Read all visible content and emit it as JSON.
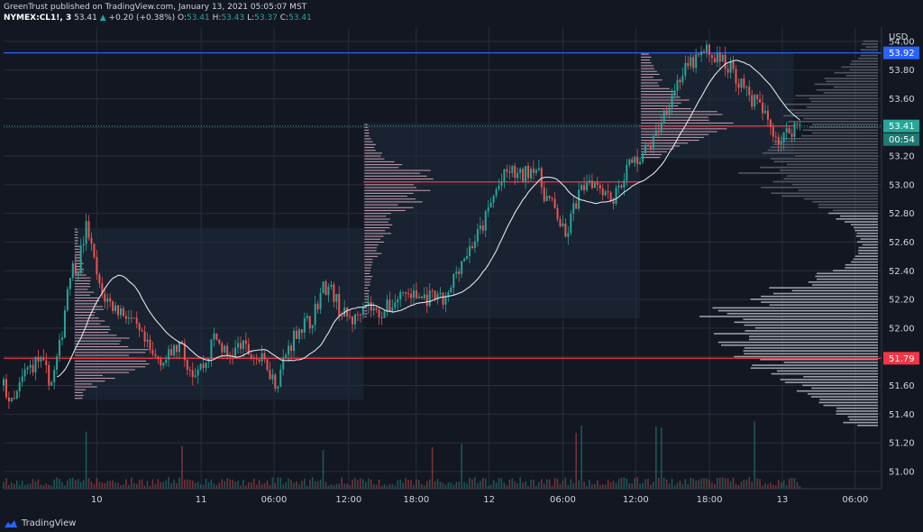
{
  "header": {
    "publisher_line": "GreenTrust published on TradingView.com, January 13, 2021 05:05:07 MST",
    "symbol": "NYMEX:CL1!, 3",
    "last": "53.41",
    "arrow": "▲",
    "change": "+0.20 (+0.38%)",
    "o_label": "O:",
    "o": "53.41",
    "h_label": "H:",
    "h": "53.43",
    "l_label": "L:",
    "l": "53.37",
    "c_label": "C:",
    "c": "53.41"
  },
  "footer": {
    "brand": "TradingView"
  },
  "colors": {
    "background": "#131722",
    "grid": "#2a2e39",
    "up": "#26a69a",
    "down": "#ef5350",
    "blue_line": "#2962ff",
    "red_line": "#f23645",
    "volume_profile": "#b2b5be",
    "session_profile": "#e8b4c6",
    "sma": "#e0e3eb"
  },
  "chart_data": {
    "type": "candlestick",
    "currency": "USD",
    "y_ticks": [
      "54.00",
      "53.80",
      "53.60",
      "53.40",
      "53.20",
      "53.00",
      "52.80",
      "52.60",
      "52.40",
      "52.20",
      "52.00",
      "51.80",
      "51.60",
      "51.40",
      "51.20",
      "51.00"
    ],
    "x_ticks": [
      "10",
      "11",
      "06:00",
      "12:00",
      "18:00",
      "12",
      "06:00",
      "12:00",
      "18:00",
      "13",
      "06:00"
    ],
    "ylim": [
      50.88,
      54.1
    ],
    "price_labels": {
      "blue": "53.92",
      "current": "53.41",
      "countdown": "00:54",
      "red": "51.79"
    },
    "key_levels": {
      "blue": 53.92,
      "red": 51.79,
      "current": 53.41
    },
    "sessions": [
      {
        "start": 0.08,
        "end": 0.41,
        "high": 52.7,
        "low": 51.5,
        "poc": 51.79
      },
      {
        "start": 0.41,
        "end": 0.725,
        "high": 53.43,
        "low": 52.07,
        "poc": 53.02
      },
      {
        "start": 0.725,
        "end": 0.9,
        "high": 53.92,
        "low": 53.18,
        "poc": 53.41
      }
    ],
    "price_path": [
      [
        0.0,
        51.6
      ],
      [
        0.01,
        51.45
      ],
      [
        0.025,
        51.7
      ],
      [
        0.04,
        51.78
      ],
      [
        0.055,
        51.62
      ],
      [
        0.065,
        51.9
      ],
      [
        0.075,
        52.4
      ],
      [
        0.085,
        52.45
      ],
      [
        0.095,
        52.73
      ],
      [
        0.1,
        52.55
      ],
      [
        0.11,
        52.25
      ],
      [
        0.125,
        52.15
      ],
      [
        0.14,
        52.1
      ],
      [
        0.155,
        51.95
      ],
      [
        0.17,
        51.8
      ],
      [
        0.185,
        51.78
      ],
      [
        0.2,
        51.88
      ],
      [
        0.215,
        51.7
      ],
      [
        0.23,
        51.75
      ],
      [
        0.24,
        51.95
      ],
      [
        0.255,
        51.8
      ],
      [
        0.27,
        51.88
      ],
      [
        0.285,
        51.8
      ],
      [
        0.3,
        51.75
      ],
      [
        0.31,
        51.6
      ],
      [
        0.32,
        51.8
      ],
      [
        0.335,
        52.0
      ],
      [
        0.35,
        52.05
      ],
      [
        0.365,
        52.3
      ],
      [
        0.375,
        52.25
      ],
      [
        0.385,
        52.1
      ],
      [
        0.4,
        52.05
      ],
      [
        0.41,
        52.2
      ],
      [
        0.425,
        52.1
      ],
      [
        0.44,
        52.15
      ],
      [
        0.455,
        52.25
      ],
      [
        0.47,
        52.22
      ],
      [
        0.49,
        52.2
      ],
      [
        0.505,
        52.18
      ],
      [
        0.515,
        52.4
      ],
      [
        0.53,
        52.55
      ],
      [
        0.545,
        52.7
      ],
      [
        0.56,
        52.95
      ],
      [
        0.575,
        53.1
      ],
      [
        0.59,
        53.05
      ],
      [
        0.605,
        53.15
      ],
      [
        0.615,
        52.95
      ],
      [
        0.63,
        52.8
      ],
      [
        0.64,
        52.62
      ],
      [
        0.65,
        52.85
      ],
      [
        0.665,
        53.05
      ],
      [
        0.68,
        53.0
      ],
      [
        0.695,
        52.9
      ],
      [
        0.71,
        53.12
      ],
      [
        0.725,
        53.2
      ],
      [
        0.74,
        53.3
      ],
      [
        0.755,
        53.55
      ],
      [
        0.77,
        53.75
      ],
      [
        0.785,
        53.85
      ],
      [
        0.8,
        53.93
      ],
      [
        0.815,
        53.88
      ],
      [
        0.83,
        53.8
      ],
      [
        0.845,
        53.65
      ],
      [
        0.86,
        53.55
      ],
      [
        0.875,
        53.4
      ],
      [
        0.885,
        53.3
      ],
      [
        0.895,
        53.38
      ],
      [
        0.905,
        53.43
      ],
      [
        0.91,
        53.41
      ]
    ]
  }
}
